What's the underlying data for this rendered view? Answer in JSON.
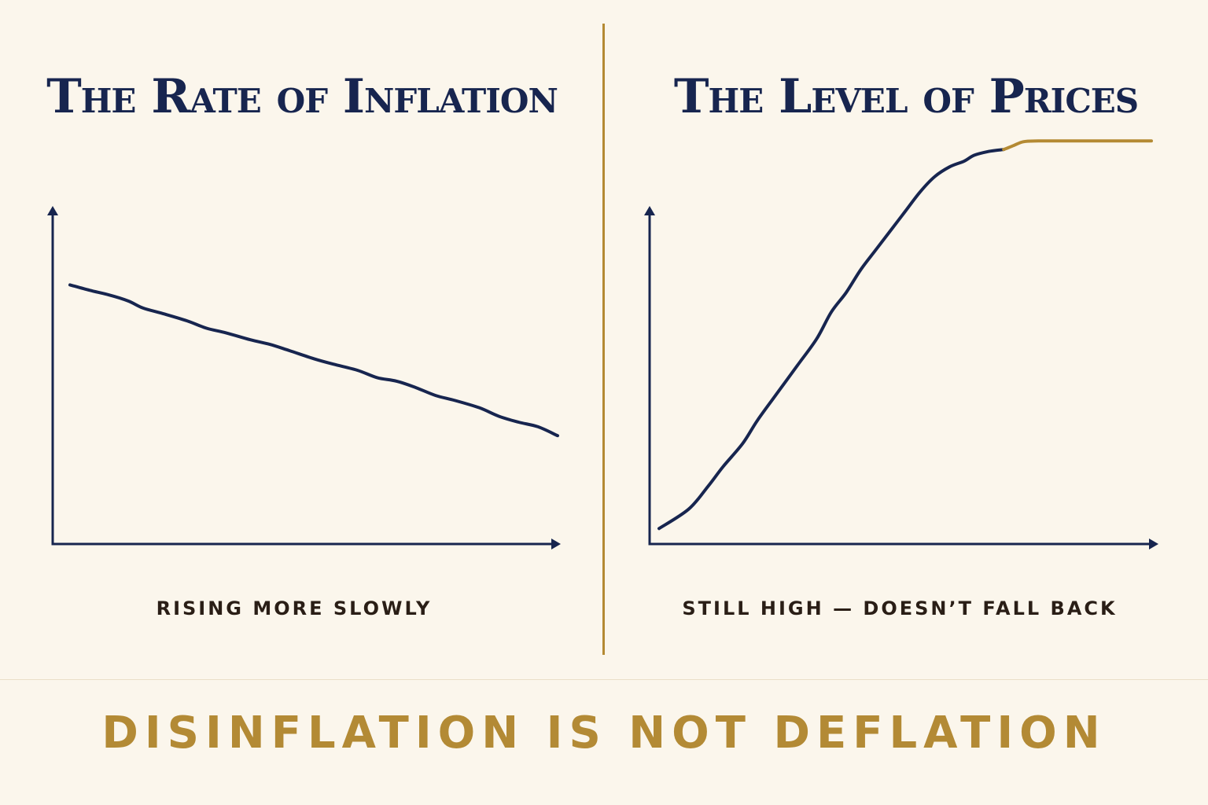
{
  "headline": "DISINFLATION IS NOT DEFLATION",
  "colors": {
    "background": "#fbf6ec",
    "navy": "#17254f",
    "gold": "#b48a33",
    "caption": "#2a1e16"
  },
  "chart_data": [
    {
      "type": "line",
      "title": "The Rate of Inflation",
      "caption": "RISING MORE SLOWLY",
      "xlabel": "",
      "ylabel": "",
      "grid": false,
      "axes_visible": true,
      "tick_labels": false,
      "xlim": [
        0,
        100
      ],
      "ylim": [
        0,
        100
      ],
      "series": [
        {
          "color": "#17254f",
          "x": [
            0,
            4,
            8,
            12,
            15,
            19,
            24,
            28,
            32,
            37,
            41,
            45,
            50,
            54,
            59,
            63,
            67,
            71,
            75,
            79,
            84,
            88,
            92,
            96,
            100
          ],
          "y": [
            67,
            65.6,
            64.4,
            62.8,
            61,
            59.6,
            57.7,
            55.8,
            54.6,
            52.8,
            51.6,
            50,
            47.9,
            46.5,
            44.9,
            43,
            42.1,
            40.4,
            38.4,
            37.1,
            35.2,
            33,
            31.5,
            30.3,
            28
          ]
        }
      ]
    },
    {
      "type": "line",
      "title": "The Level of Prices",
      "caption": "STILL HIGH — DOESN’T FALL BACK",
      "xlabel": "",
      "ylabel": "",
      "grid": false,
      "axes_visible": true,
      "tick_labels": false,
      "xlim": [
        0,
        100
      ],
      "ylim": [
        0,
        100
      ],
      "series": [
        {
          "color": "#17254f",
          "x": [
            0,
            6,
            10,
            13,
            17,
            20,
            24,
            28,
            32,
            35,
            38,
            41,
            44,
            47,
            50,
            53,
            56,
            59,
            62,
            64,
            67,
            70
          ],
          "y": [
            4,
            9,
            15,
            20,
            26,
            32,
            39,
            46,
            53,
            60,
            65,
            71,
            76,
            81,
            86,
            91,
            95,
            97.5,
            99,
            100.5,
            101.5,
            102
          ]
        },
        {
          "color": "#b48a33",
          "x": [
            70,
            72,
            74,
            77,
            80,
            85,
            90,
            95,
            100
          ],
          "y": [
            102,
            103,
            104,
            104.2,
            104.2,
            104.2,
            104.2,
            104.2,
            104.2
          ]
        }
      ]
    }
  ]
}
